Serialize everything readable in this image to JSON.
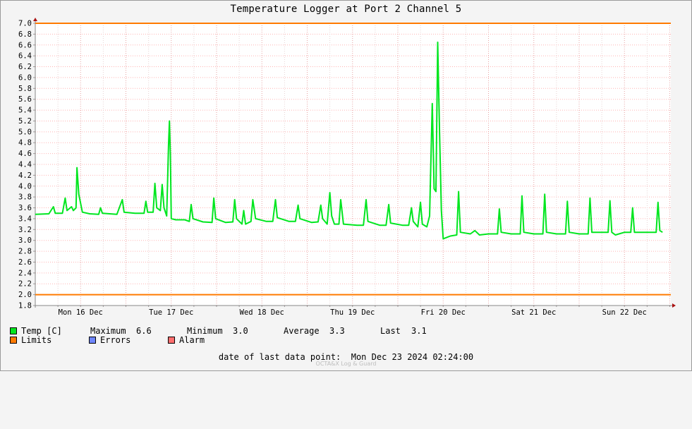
{
  "chart_data": {
    "type": "line",
    "title": "Temperature Logger at Port 2 Channel 5",
    "xlabel": "",
    "ylabel": "",
    "x_range": [
      0,
      7
    ],
    "x_unit": "day",
    "x_tick_labels": [
      "Mon 16 Dec",
      "Tue 17 Dec",
      "Wed 18 Dec",
      "Thu 19 Dec",
      "Fri 20 Dec",
      "Sat 21 Dec",
      "Sun 22 Dec"
    ],
    "ylim": [
      1.8,
      7.0
    ],
    "y_ticks": [
      "1.8",
      "2.0",
      "2.2",
      "2.4",
      "2.6",
      "2.8",
      "3.0",
      "3.2",
      "3.4",
      "3.6",
      "3.8",
      "4.0",
      "4.2",
      "4.4",
      "4.6",
      "4.8",
      "5.0",
      "5.2",
      "5.4",
      "5.6",
      "5.8",
      "6.0",
      "6.2",
      "6.4",
      "6.6",
      "6.8",
      "7.0"
    ],
    "grid": true,
    "limits": [
      2.0,
      7.0
    ],
    "series": [
      {
        "name": "Temp [C]",
        "color": "#00e61f",
        "points": [
          [
            0.0,
            3.48
          ],
          [
            0.15,
            3.49
          ],
          [
            0.2,
            3.62
          ],
          [
            0.22,
            3.5
          ],
          [
            0.3,
            3.5
          ],
          [
            0.33,
            3.78
          ],
          [
            0.35,
            3.55
          ],
          [
            0.4,
            3.62
          ],
          [
            0.42,
            3.55
          ],
          [
            0.45,
            3.6
          ],
          [
            0.46,
            4.34
          ],
          [
            0.48,
            3.85
          ],
          [
            0.52,
            3.52
          ],
          [
            0.6,
            3.49
          ],
          [
            0.7,
            3.48
          ],
          [
            0.72,
            3.6
          ],
          [
            0.74,
            3.5
          ],
          [
            0.9,
            3.48
          ],
          [
            0.96,
            3.75
          ],
          [
            0.98,
            3.52
          ],
          [
            1.1,
            3.5
          ],
          [
            1.2,
            3.5
          ],
          [
            1.22,
            3.72
          ],
          [
            1.24,
            3.52
          ],
          [
            1.3,
            3.52
          ],
          [
            1.32,
            4.05
          ],
          [
            1.34,
            3.6
          ],
          [
            1.38,
            3.55
          ],
          [
            1.4,
            4.03
          ],
          [
            1.42,
            3.6
          ],
          [
            1.45,
            3.45
          ],
          [
            1.47,
            4.75
          ],
          [
            1.48,
            5.2
          ],
          [
            1.49,
            4.6
          ],
          [
            1.5,
            3.4
          ],
          [
            1.55,
            3.38
          ],
          [
            1.65,
            3.38
          ],
          [
            1.7,
            3.35
          ],
          [
            1.72,
            3.66
          ],
          [
            1.74,
            3.4
          ],
          [
            1.85,
            3.34
          ],
          [
            1.95,
            3.33
          ],
          [
            1.97,
            3.78
          ],
          [
            1.99,
            3.4
          ],
          [
            2.1,
            3.33
          ],
          [
            2.18,
            3.34
          ],
          [
            2.2,
            3.75
          ],
          [
            2.22,
            3.4
          ],
          [
            2.28,
            3.3
          ],
          [
            2.3,
            3.55
          ],
          [
            2.32,
            3.3
          ],
          [
            2.38,
            3.35
          ],
          [
            2.4,
            3.75
          ],
          [
            2.43,
            3.4
          ],
          [
            2.55,
            3.35
          ],
          [
            2.62,
            3.35
          ],
          [
            2.65,
            3.75
          ],
          [
            2.67,
            3.42
          ],
          [
            2.8,
            3.35
          ],
          [
            2.87,
            3.35
          ],
          [
            2.9,
            3.65
          ],
          [
            2.92,
            3.4
          ],
          [
            3.05,
            3.33
          ],
          [
            3.12,
            3.34
          ],
          [
            3.15,
            3.65
          ],
          [
            3.17,
            3.4
          ],
          [
            3.22,
            3.3
          ],
          [
            3.25,
            3.88
          ],
          [
            3.27,
            3.45
          ],
          [
            3.3,
            3.3
          ],
          [
            3.35,
            3.3
          ],
          [
            3.37,
            3.75
          ],
          [
            3.4,
            3.3
          ],
          [
            3.55,
            3.28
          ],
          [
            3.62,
            3.28
          ],
          [
            3.65,
            3.75
          ],
          [
            3.67,
            3.35
          ],
          [
            3.8,
            3.28
          ],
          [
            3.87,
            3.28
          ],
          [
            3.9,
            3.66
          ],
          [
            3.92,
            3.32
          ],
          [
            4.05,
            3.28
          ],
          [
            4.12,
            3.28
          ],
          [
            4.15,
            3.6
          ],
          [
            4.17,
            3.35
          ],
          [
            4.22,
            3.25
          ],
          [
            4.25,
            3.7
          ],
          [
            4.27,
            3.3
          ],
          [
            4.32,
            3.25
          ],
          [
            4.35,
            3.45
          ],
          [
            4.38,
            5.52
          ],
          [
            4.4,
            3.95
          ],
          [
            4.42,
            3.9
          ],
          [
            4.44,
            6.65
          ],
          [
            4.46,
            5.0
          ],
          [
            4.48,
            3.55
          ],
          [
            4.5,
            3.03
          ],
          [
            4.58,
            3.08
          ],
          [
            4.65,
            3.1
          ],
          [
            4.67,
            3.9
          ],
          [
            4.69,
            3.15
          ],
          [
            4.8,
            3.12
          ],
          [
            4.85,
            3.18
          ],
          [
            4.9,
            3.1
          ],
          [
            5.0,
            3.12
          ],
          [
            5.1,
            3.12
          ],
          [
            5.12,
            3.58
          ],
          [
            5.14,
            3.15
          ],
          [
            5.25,
            3.12
          ],
          [
            5.35,
            3.12
          ],
          [
            5.37,
            3.82
          ],
          [
            5.39,
            3.15
          ],
          [
            5.5,
            3.12
          ],
          [
            5.6,
            3.12
          ],
          [
            5.62,
            3.85
          ],
          [
            5.64,
            3.15
          ],
          [
            5.75,
            3.12
          ],
          [
            5.85,
            3.12
          ],
          [
            5.87,
            3.72
          ],
          [
            5.89,
            3.15
          ],
          [
            6.0,
            3.12
          ],
          [
            6.1,
            3.12
          ],
          [
            6.12,
            3.78
          ],
          [
            6.14,
            3.15
          ],
          [
            6.2,
            3.15
          ],
          [
            6.32,
            3.15
          ],
          [
            6.34,
            3.73
          ],
          [
            6.36,
            3.15
          ],
          [
            6.4,
            3.1
          ],
          [
            6.5,
            3.15
          ],
          [
            6.57,
            3.15
          ],
          [
            6.59,
            3.6
          ],
          [
            6.61,
            3.15
          ],
          [
            6.75,
            3.15
          ],
          [
            6.85,
            3.15
          ],
          [
            6.87,
            3.7
          ],
          [
            6.89,
            3.18
          ],
          [
            6.92,
            3.15
          ]
        ]
      }
    ],
    "legend_placement": "bottom-left"
  },
  "legend": {
    "temp_label": "Temp [C]",
    "limits_label": "Limits",
    "errors_label": "Errors",
    "alarm_label": "Alarm",
    "maximum_label": "Maximum",
    "maximum_value": "6.6",
    "minimum_label": "Minimum",
    "minimum_value": "3.0",
    "average_label": "Average",
    "average_value": "3.3",
    "last_label": "Last",
    "last_value": "3.1"
  },
  "colors": {
    "temp": "#00e61f",
    "limits": "#ff7a00",
    "errors": "#6f86ff",
    "alarm": "#ff6e6e"
  },
  "footer": {
    "last_point_label": "date of last data point:",
    "last_point_value": "Mon Dec 23 2024 02:24:00"
  },
  "watermark": "OCTA&X Log & Guard"
}
